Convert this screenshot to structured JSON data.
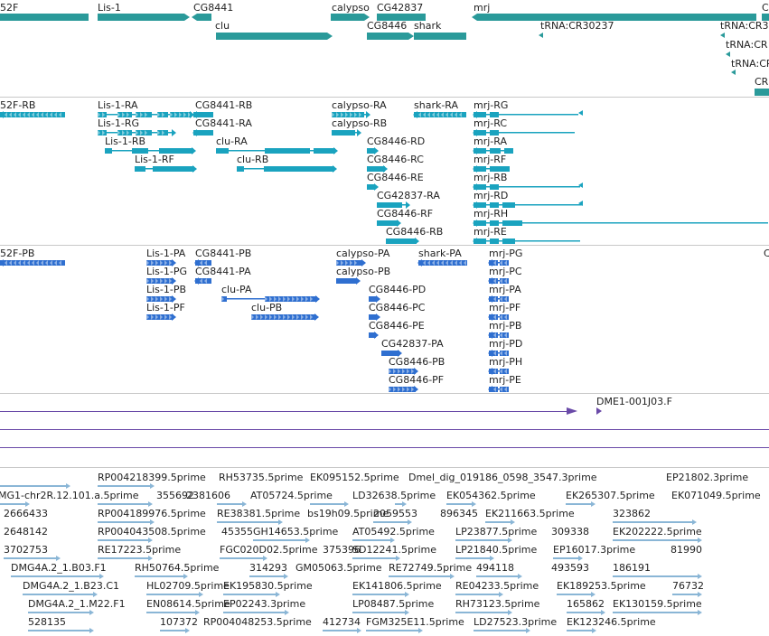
{
  "colors": {
    "gene": "#2a9a9a",
    "transcript": "#1aa3bf",
    "protein": "#2f6fd0",
    "clone": "#6a4aa8",
    "est": "#8ab6d6",
    "divider": "#c8c8c8"
  },
  "genes": {
    "labels": [
      "52F",
      "Lis-1",
      "CG8441",
      "calypso",
      "CG42837",
      "mrj",
      "clu",
      "CG8446",
      "shark",
      "tRNA:CR30237",
      "tRNA:CR3",
      "tRNA:CR",
      "tRNA:CR",
      "CR",
      "C"
    ]
  },
  "transcripts": {
    "labels": [
      "52F-RB",
      "Lis-1-RA",
      "CG8441-RB",
      "calypso-RA",
      "shark-RA",
      "mrj-RG",
      "Lis-1-RG",
      "CG8441-RA",
      "calypso-RB",
      "mrj-RC",
      "Lis-1-RB",
      "clu-RA",
      "CG8446-RD",
      "mrj-RA",
      "Lis-1-RF",
      "clu-RB",
      "CG8446-RC",
      "mrj-RF",
      "CG8446-RE",
      "mrj-RB",
      "CG42837-RA",
      "mrj-RD",
      "CG8446-RF",
      "mrj-RH",
      "CG8446-RB",
      "mrj-RE"
    ]
  },
  "proteins": {
    "labels": [
      "52F-PB",
      "Lis-1-PA",
      "CG8441-PB",
      "calypso-PA",
      "shark-PA",
      "mrj-PG",
      "C",
      "Lis-1-PG",
      "CG8441-PA",
      "calypso-PB",
      "mrj-PC",
      "Lis-1-PB",
      "clu-PA",
      "CG8446-PD",
      "mrj-PA",
      "Lis-1-PF",
      "clu-PB",
      "CG8446-PC",
      "mrj-PF",
      "CG8446-PE",
      "mrj-PB",
      "CG42837-PA",
      "mrj-PD",
      "CG8446-PB",
      "mrj-PH",
      "CG8446-PF",
      "mrj-PE"
    ]
  },
  "clones": {
    "labels": [
      "DME1-001J03.F"
    ]
  },
  "ests": {
    "labels": [
      "RP004218399.5prime",
      "RH53735.5prime",
      "EK095152.5prime",
      "Dmel_dig_019186_0598_3547.3prime",
      "EP21802.3prime",
      "MG1-chr2R.12.101.a.5prime",
      "355692",
      "2381606",
      "AT05724.5prime",
      "LD32638.5prime",
      "EK054362.5prime",
      "EK265307.5prime",
      "EK071049.5prime",
      "2666433",
      "RP004189976.5prime",
      "RE38381.5prime",
      "bs19h09.5prime",
      "2059553",
      "896345",
      "EK211663.5prime",
      "323862",
      "2648142",
      "RP004043508.5prime",
      "45355",
      "GH14653.5prime",
      "AT05492.5prime",
      "LP23877.5prime",
      "309338",
      "EK202222.5prime",
      "3702753",
      "RE17223.5prime",
      "FGC020D02.5prime",
      "375396",
      "SD12241.5prime",
      "LP21840.5prime",
      "EP16017.3prime",
      "81990",
      "DMG4A.2_1.B03.F1",
      "RH50764.5prime",
      "314293",
      "GM05063.5prime",
      "RE72749.5prime",
      "494118",
      "493593",
      "186191",
      "DMG4A.2_1.B23.C1",
      "HL02709.5prime",
      "EK195830.5prime",
      "EK141806.5prime",
      "RE04233.5prime",
      "EK189253.5prime",
      "76732",
      "DMG4A.2_1.M22.F1",
      "EN08614.5prime",
      "EP02243.3prime",
      "LP08487.5prime",
      "RH73123.5prime",
      "165862",
      "EK130159.5prime",
      "528135",
      "107372",
      "RP004048253.5prime",
      "412734",
      "FGM325E11.5prime",
      "LD27523.3prime",
      "EK123246.5prime"
    ]
  }
}
